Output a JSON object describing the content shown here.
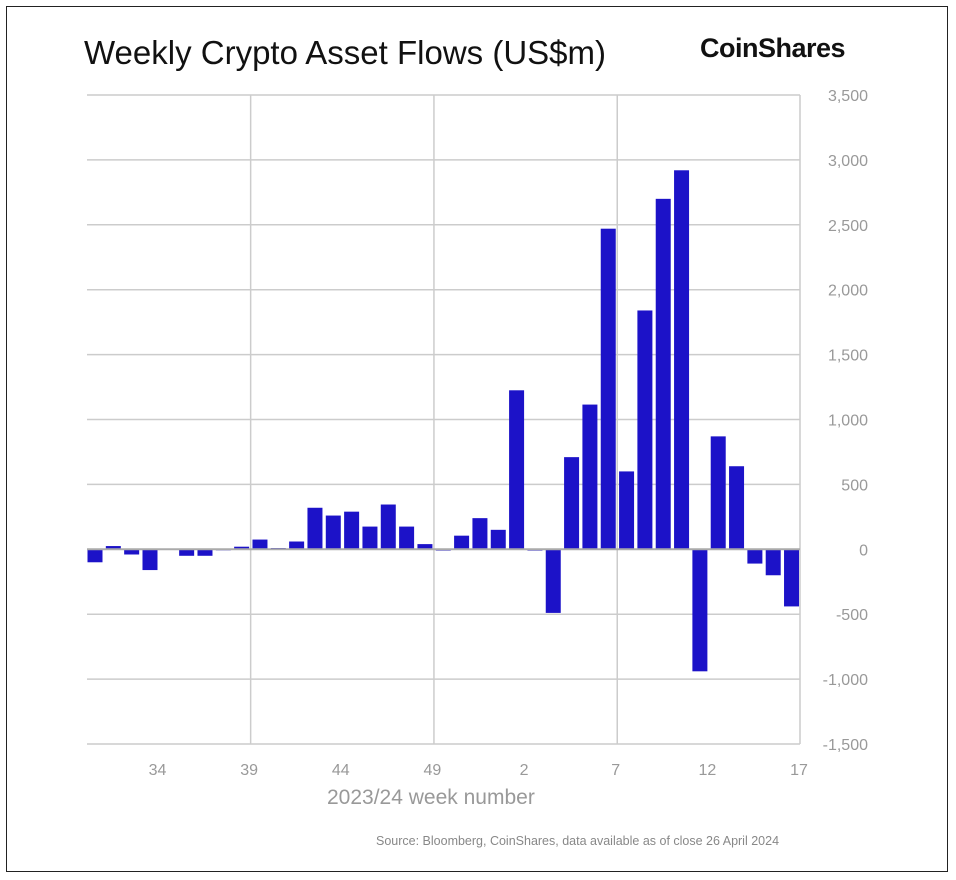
{
  "chart_data": {
    "type": "bar",
    "title": "Weekly Crypto Asset Flows (US$m)",
    "brand": "CoinShares",
    "xlabel": "2023/24 week number",
    "ylabel": "",
    "source": "Source: Bloomberg, CoinShares, data available as of close 26 April 2024",
    "ylim": [
      -1500,
      3500
    ],
    "yticks": [
      3500,
      3000,
      2500,
      2000,
      1500,
      1000,
      500,
      0,
      -500,
      -1000,
      -1500
    ],
    "ytick_labels": [
      "3,500",
      "3,000",
      "2,500",
      "2,000",
      "1,500",
      "1,000",
      "500",
      "0",
      "-500",
      "-1,000",
      "-1,500"
    ],
    "categories": [
      "31",
      "32",
      "33",
      "34",
      "35",
      "36",
      "37",
      "38",
      "39",
      "40",
      "41",
      "42",
      "43",
      "44",
      "45",
      "46",
      "47",
      "48",
      "49",
      "50",
      "51",
      "52",
      "1",
      "2",
      "3",
      "4",
      "5",
      "6",
      "7",
      "8",
      "9",
      "10",
      "11",
      "12",
      "13",
      "14",
      "15",
      "16",
      "17"
    ],
    "xtick_labels": [
      "34",
      "39",
      "44",
      "49",
      "2",
      "7",
      "12",
      "17"
    ],
    "values": [
      -100,
      25,
      -40,
      -160,
      0,
      -50,
      -50,
      -5,
      20,
      75,
      10,
      60,
      320,
      260,
      290,
      175,
      345,
      175,
      40,
      -10,
      105,
      240,
      150,
      1225,
      -10,
      -490,
      710,
      1115,
      2470,
      600,
      1840,
      2700,
      2920,
      -940,
      870,
      640,
      -110,
      -200,
      -440
    ],
    "bar_color": "#1c12c8",
    "grid": true,
    "legend": "none"
  }
}
